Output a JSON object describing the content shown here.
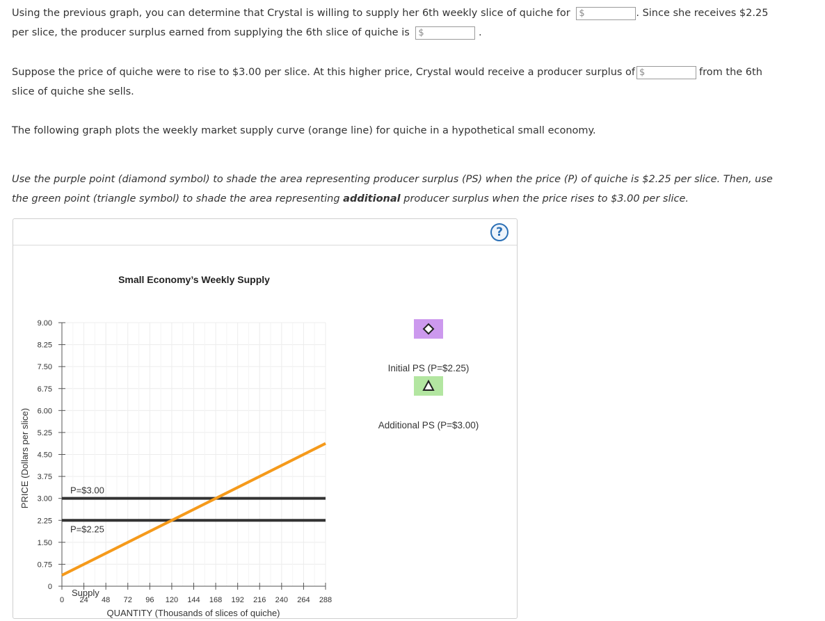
{
  "question": {
    "p1": {
      "text_a": "Using the previous graph, you can determine that Crystal is willing to supply her 6th weekly slice of quiche for",
      "text_b": ". Since she receives $2.25",
      "text_c": "per slice, the producer surplus earned from supplying the 6th slice of quiche is",
      "text_d": "."
    },
    "p2": {
      "text_a": "Suppose the price of quiche were to rise to $3.00 per slice. At this higher price, Crystal would receive a producer surplus of",
      "text_b": "from the 6th",
      "text_c": "slice of quiche she sells."
    },
    "p3": "The following graph plots the weekly market supply curve (orange line) for quiche in a hypothetical small economy.",
    "p4": {
      "line1": "Use the purple point (diamond symbol) to shade the area representing producer surplus (PS) when the price (P) of quiche is $2.25 per slice. Then, use",
      "line2_a": "the green point (triangle symbol) to shade the area representing ",
      "line2_bold": "additional",
      "line2_b": " producer surplus when the price rises to $3.00 per slice."
    },
    "input_prefix": "$",
    "inputs": {
      "willing_price": "",
      "ps_6th_at_225": "",
      "ps_6th_at_300": ""
    }
  },
  "panel": {
    "help_label": "?"
  },
  "legend": {
    "initial_label": "Initial PS (P=$2.25)",
    "additional_label": "Additional PS (P=$3.00)",
    "initial_color": "#cc99ee",
    "additional_color": "#b3e6a1",
    "initial_icon": "diamond-icon",
    "additional_icon": "triangle-icon"
  },
  "chart_data": {
    "type": "line",
    "title": "Small Economy’s Weekly Supply",
    "xlabel": "QUANTITY (Thousands of slices of quiche)",
    "ylabel": "PRICE (Dollars per slice)",
    "xlim": [
      0,
      288
    ],
    "ylim": [
      0,
      9
    ],
    "x_ticks": [
      0,
      24,
      48,
      72,
      96,
      120,
      144,
      168,
      192,
      216,
      240,
      264,
      288
    ],
    "y_ticks": [
      0,
      0.75,
      1.5,
      2.25,
      3.0,
      3.75,
      4.5,
      5.25,
      6.0,
      6.75,
      7.5,
      8.25,
      9.0
    ],
    "y_tick_labels": [
      "0",
      "0.75",
      "1.50",
      "2.25",
      "3.00",
      "3.75",
      "4.50",
      "5.25",
      "6.00",
      "6.75",
      "7.50",
      "8.25",
      "9.00"
    ],
    "grid": true,
    "series": [
      {
        "name": "Supply",
        "color": "#f59a1b",
        "x": [
          0,
          288
        ],
        "y": [
          0.375,
          4.875
        ]
      }
    ],
    "price_lines": [
      {
        "label": "P=$3.00",
        "value": 3.0,
        "color": "#333333"
      },
      {
        "label": "P=$2.25",
        "value": 2.25,
        "color": "#333333"
      }
    ]
  }
}
